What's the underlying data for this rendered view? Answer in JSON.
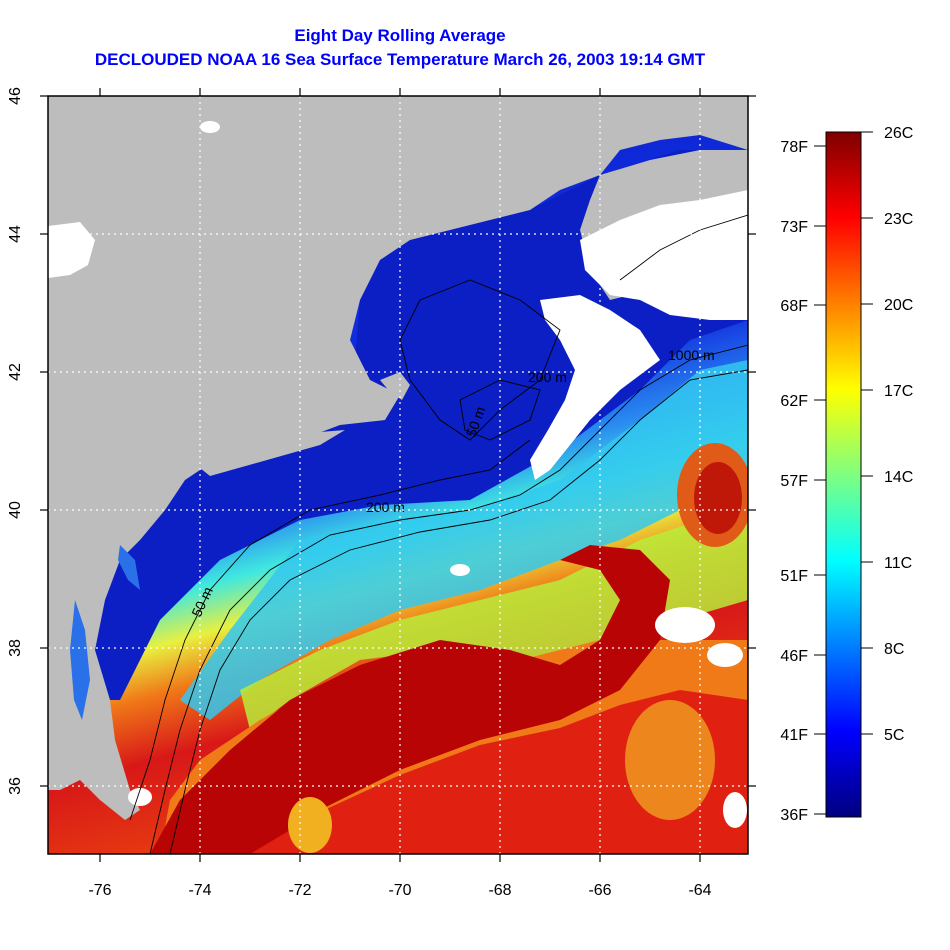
{
  "title": {
    "line1": "Eight Day Rolling Average",
    "line2": "DECLOUDED NOAA 16 Sea Surface Temperature March 26, 2003 19:14 GMT"
  },
  "map": {
    "x_ticks": [
      "-76",
      "-74",
      "-72",
      "-70",
      "-68",
      "-66",
      "-64"
    ],
    "y_ticks": [
      "36",
      "38",
      "40",
      "42",
      "44",
      "46"
    ],
    "contour_labels": [
      "50 m",
      "200 m",
      "50 m",
      "200 m",
      "1000 m"
    ],
    "colors": {
      "land": "#bdbdbd",
      "cloud": "#ffffff",
      "cold": "#0a1fc8",
      "warm": "#d81010",
      "gulfstream_core": "#b00000"
    }
  },
  "colorbar": {
    "celsius": [
      "26C",
      "23C",
      "20C",
      "17C",
      "14C",
      "11C",
      "8C",
      "5C"
    ],
    "fahrenheit": [
      "78F",
      "73F",
      "68F",
      "62F",
      "57F",
      "51F",
      "46F",
      "41F",
      "36F"
    ],
    "range_c": [
      2,
      26
    ],
    "stops": [
      "#00007f",
      "#0000ff",
      "#007fff",
      "#00ffff",
      "#7fff7f",
      "#ffff00",
      "#ff7f00",
      "#ff0000",
      "#7f0000"
    ]
  }
}
